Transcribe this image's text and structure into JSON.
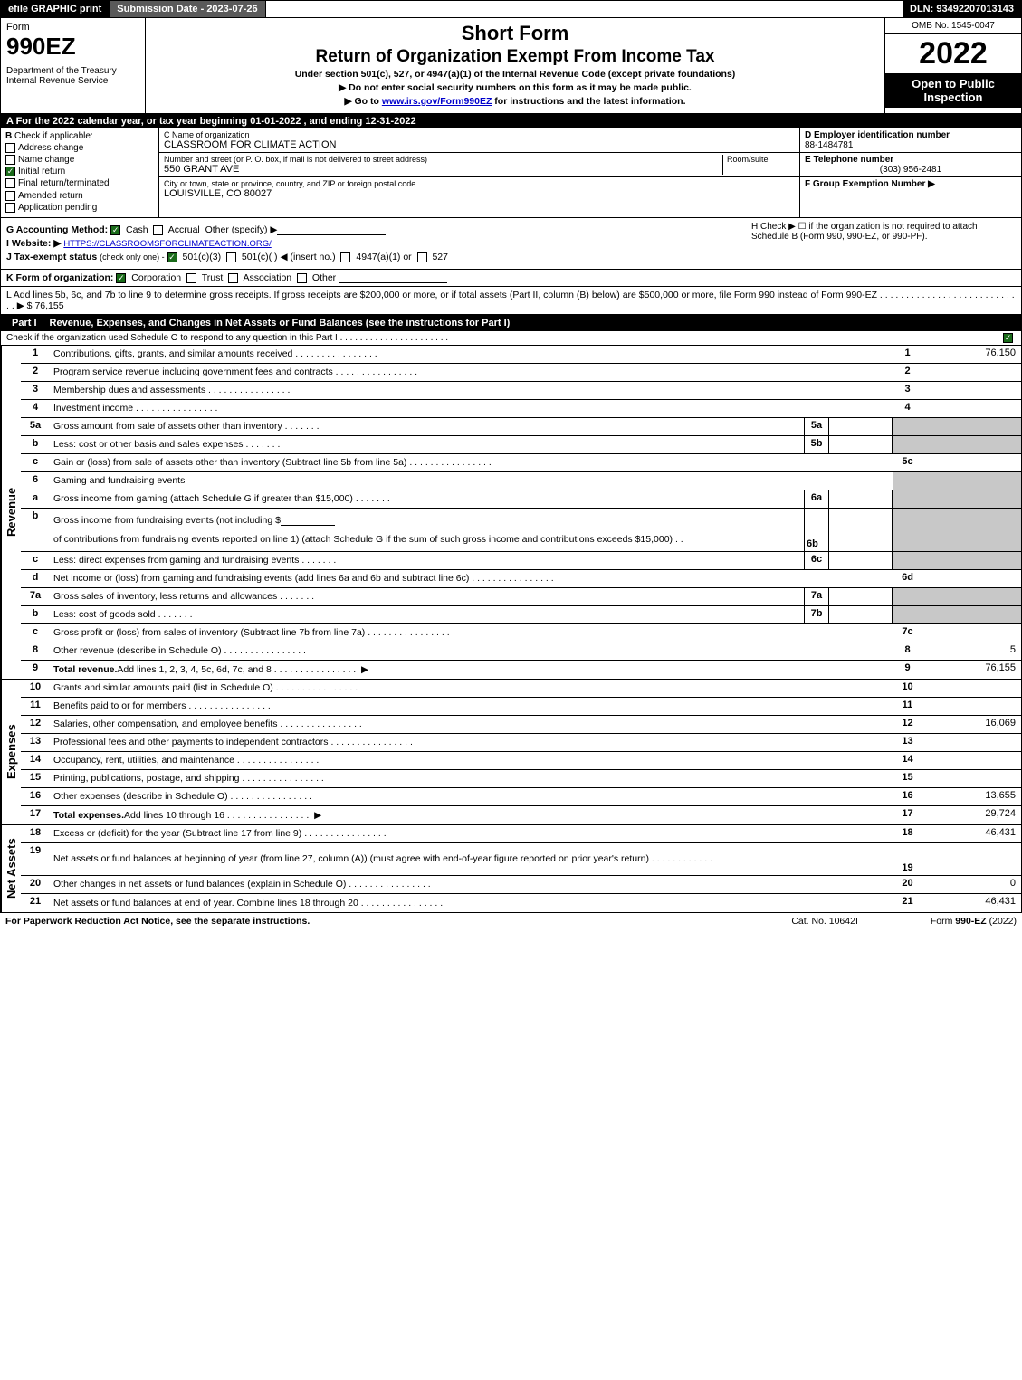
{
  "topbar": {
    "efile": "efile GRAPHIC print",
    "subdate": "Submission Date - 2023-07-26",
    "dln": "DLN: 93492207013143"
  },
  "header": {
    "form_label": "Form",
    "form_num": "990EZ",
    "dept": "Department of the Treasury\nInternal Revenue Service",
    "shortform": "Short Form",
    "title": "Return of Organization Exempt From Income Tax",
    "subtitle": "Under section 501(c), 527, or 4947(a)(1) of the Internal Revenue Code (except private foundations)",
    "instr1": "▶ Do not enter social security numbers on this form as it may be made public.",
    "instr2_pre": "▶ Go to ",
    "instr2_link": "www.irs.gov/Form990EZ",
    "instr2_post": " for instructions and the latest information.",
    "omb": "OMB No. 1545-0047",
    "year": "2022",
    "open": "Open to Public Inspection"
  },
  "row_a": "A  For the 2022 calendar year, or tax year beginning 01-01-2022 , and ending 12-31-2022",
  "section_b": {
    "label": "B",
    "check_label": "Check if applicable:",
    "items": [
      {
        "label": "Address change",
        "checked": false
      },
      {
        "label": "Name change",
        "checked": false
      },
      {
        "label": "Initial return",
        "checked": true
      },
      {
        "label": "Final return/terminated",
        "checked": false
      },
      {
        "label": "Amended return",
        "checked": false
      },
      {
        "label": "Application pending",
        "checked": false
      }
    ]
  },
  "section_c": {
    "name_label": "C Name of organization",
    "name": "CLASSROOM FOR CLIMATE ACTION",
    "street_label": "Number and street (or P. O. box, if mail is not delivered to street address)",
    "room_label": "Room/suite",
    "street": "550 GRANT AVE",
    "city_label": "City or town, state or province, country, and ZIP or foreign postal code",
    "city": "LOUISVILLE, CO  80027"
  },
  "section_d": {
    "ein_label": "D Employer identification number",
    "ein": "88-1484781",
    "tel_label": "E Telephone number",
    "tel": "(303) 956-2481",
    "group_label": "F Group Exemption Number   ▶"
  },
  "section_gh": {
    "g_label": "G Accounting Method:",
    "g_cash": "Cash",
    "g_accrual": "Accrual",
    "g_other": "Other (specify) ▶",
    "h_text": "H  Check ▶  ☐  if the organization is not required to attach Schedule B (Form 990, 990-EZ, or 990-PF).",
    "i_label": "I Website: ▶",
    "i_val": "HTTPS://CLASSROOMSFORCLIMATEACTION.ORG/",
    "j_label": "J Tax-exempt status",
    "j_sub": "(check only one) -",
    "j_501c3": "501(c)(3)",
    "j_501c": "501(c)(    ) ◀ (insert no.)",
    "j_4947": "4947(a)(1) or",
    "j_527": "527"
  },
  "section_k": {
    "label": "K Form of organization:",
    "corp": "Corporation",
    "trust": "Trust",
    "assoc": "Association",
    "other": "Other"
  },
  "section_l": {
    "text": "L Add lines 5b, 6c, and 7b to line 9 to determine gross receipts. If gross receipts are $200,000 or more, or if total assets (Part II, column (B) below) are $500,000 or more, file Form 990 instead of Form 990-EZ",
    "dots": ". . . . . . . . . . . . . . . . . . . . . . . . . . . .",
    "arrow": "▶ $",
    "val": "76,155"
  },
  "part1": {
    "num": "Part I",
    "title": "Revenue, Expenses, and Changes in Net Assets or Fund Balances (see the instructions for Part I)",
    "sub": "Check if the organization used Schedule O to respond to any question in this Part I",
    "sub_dots": ". . . . . . . . . . . . . . . . . . . . . .",
    "revenue_label": "Revenue",
    "expenses_label": "Expenses",
    "netassets_label": "Net Assets",
    "lines": {
      "1": {
        "num": "1",
        "desc": "Contributions, gifts, grants, and similar amounts received",
        "ref": "1",
        "val": "76,150"
      },
      "2": {
        "num": "2",
        "desc": "Program service revenue including government fees and contracts",
        "ref": "2",
        "val": ""
      },
      "3": {
        "num": "3",
        "desc": "Membership dues and assessments",
        "ref": "3",
        "val": ""
      },
      "4": {
        "num": "4",
        "desc": "Investment income",
        "ref": "4",
        "val": ""
      },
      "5a": {
        "num": "5a",
        "desc": "Gross amount from sale of assets other than inventory",
        "inner_ref": "5a"
      },
      "5b": {
        "num": "b",
        "desc": "Less: cost or other basis and sales expenses",
        "inner_ref": "5b"
      },
      "5c": {
        "num": "c",
        "desc": "Gain or (loss) from sale of assets other than inventory (Subtract line 5b from line 5a)",
        "ref": "5c",
        "val": ""
      },
      "6": {
        "num": "6",
        "desc": "Gaming and fundraising events"
      },
      "6a": {
        "num": "a",
        "desc": "Gross income from gaming (attach Schedule G if greater than $15,000)",
        "inner_ref": "6a"
      },
      "6b": {
        "num": "b",
        "desc_pre": "Gross income from fundraising events (not including $",
        "desc_post": "of contributions from fundraising events reported on line 1) (attach Schedule G if the sum of such gross income and contributions exceeds $15,000)",
        "inner_ref": "6b"
      },
      "6c": {
        "num": "c",
        "desc": "Less: direct expenses from gaming and fundraising events",
        "inner_ref": "6c"
      },
      "6d": {
        "num": "d",
        "desc": "Net income or (loss) from gaming and fundraising events (add lines 6a and 6b and subtract line 6c)",
        "ref": "6d",
        "val": ""
      },
      "7a": {
        "num": "7a",
        "desc": "Gross sales of inventory, less returns and allowances",
        "inner_ref": "7a"
      },
      "7b": {
        "num": "b",
        "desc": "Less: cost of goods sold",
        "inner_ref": "7b"
      },
      "7c": {
        "num": "c",
        "desc": "Gross profit or (loss) from sales of inventory (Subtract line 7b from line 7a)",
        "ref": "7c",
        "val": ""
      },
      "8": {
        "num": "8",
        "desc": "Other revenue (describe in Schedule O)",
        "ref": "8",
        "val": "5"
      },
      "9": {
        "num": "9",
        "desc": "Total revenue. Add lines 1, 2, 3, 4, 5c, 6d, 7c, and 8",
        "ref": "9",
        "val": "76,155",
        "arrow": "▶"
      },
      "10": {
        "num": "10",
        "desc": "Grants and similar amounts paid (list in Schedule O)",
        "ref": "10",
        "val": ""
      },
      "11": {
        "num": "11",
        "desc": "Benefits paid to or for members",
        "ref": "11",
        "val": ""
      },
      "12": {
        "num": "12",
        "desc": "Salaries, other compensation, and employee benefits",
        "ref": "12",
        "val": "16,069"
      },
      "13": {
        "num": "13",
        "desc": "Professional fees and other payments to independent contractors",
        "ref": "13",
        "val": ""
      },
      "14": {
        "num": "14",
        "desc": "Occupancy, rent, utilities, and maintenance",
        "ref": "14",
        "val": ""
      },
      "15": {
        "num": "15",
        "desc": "Printing, publications, postage, and shipping",
        "ref": "15",
        "val": ""
      },
      "16": {
        "num": "16",
        "desc": "Other expenses (describe in Schedule O)",
        "ref": "16",
        "val": "13,655"
      },
      "17": {
        "num": "17",
        "desc": "Total expenses. Add lines 10 through 16",
        "ref": "17",
        "val": "29,724",
        "arrow": "▶"
      },
      "18": {
        "num": "18",
        "desc": "Excess or (deficit) for the year (Subtract line 17 from line 9)",
        "ref": "18",
        "val": "46,431"
      },
      "19": {
        "num": "19",
        "desc": "Net assets or fund balances at beginning of year (from line 27, column (A)) (must agree with end-of-year figure reported on prior year's return)",
        "ref": "19",
        "val": ""
      },
      "20": {
        "num": "20",
        "desc": "Other changes in net assets or fund balances (explain in Schedule O)",
        "ref": "20",
        "val": "0"
      },
      "21": {
        "num": "21",
        "desc": "Net assets or fund balances at end of year. Combine lines 18 through 20",
        "ref": "21",
        "val": "46,431"
      }
    }
  },
  "footer": {
    "left": "For Paperwork Reduction Act Notice, see the separate instructions.",
    "mid": "Cat. No. 10642I",
    "right_pre": "Form ",
    "right_bold": "990-EZ",
    "right_post": " (2022)"
  },
  "colors": {
    "black": "#000000",
    "white": "#ffffff",
    "darkgray": "#5a5a5a",
    "shaded": "#c8c8c8",
    "checkgreen": "#1a6b1a",
    "link": "#0000cc"
  }
}
